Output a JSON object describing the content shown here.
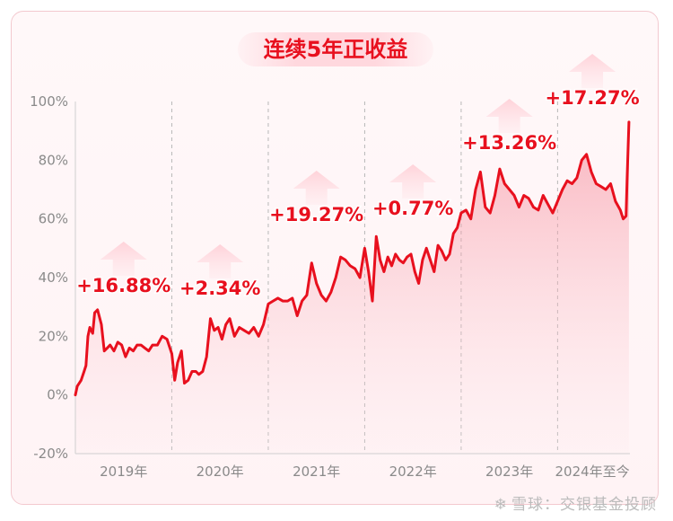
{
  "title": "连续5年正收益",
  "watermark": "雪球：交银基金投顾",
  "chart_data": {
    "type": "line",
    "title": "连续5年正收益",
    "ylim": [
      -20,
      100
    ],
    "y_ticks": [
      "100%",
      "80%",
      "60%",
      "40%",
      "20%",
      "0%",
      "-20%"
    ],
    "y_tick_values": [
      100,
      80,
      60,
      40,
      20,
      0,
      -20
    ],
    "x_categories": [
      "2019年",
      "2020年",
      "2021年",
      "2022年",
      "2023年",
      "2024年至今"
    ],
    "x_range": [
      2019,
      2024.75
    ],
    "grid": false,
    "line_color": "#e8101e",
    "fill_color": "#f6a5b1",
    "annotations": [
      {
        "text": "+16.88%",
        "year": 2019
      },
      {
        "text": "+2.34%",
        "year": 2020
      },
      {
        "text": "+19.27%",
        "year": 2021
      },
      {
        "text": "+0.77%",
        "year": 2022
      },
      {
        "text": "+13.26%",
        "year": 2023
      },
      {
        "text": "+17.27%",
        "year": 2024
      }
    ],
    "series": [
      {
        "x": [
          2019.0,
          2019.02,
          2019.04,
          2019.06,
          2019.09,
          2019.11,
          2019.13,
          2019.15,
          2019.18,
          2019.2,
          2019.23,
          2019.27,
          2019.3,
          2019.33,
          2019.36,
          2019.4,
          2019.44,
          2019.48,
          2019.52,
          2019.56,
          2019.6,
          2019.64,
          2019.68,
          2019.72,
          2019.76,
          2019.8,
          2019.85,
          2019.9,
          2019.95,
          2020.0,
          2020.03,
          2020.06,
          2020.1,
          2020.13,
          2020.17,
          2020.21,
          2020.25,
          2020.28,
          2020.32,
          2020.36,
          2020.4,
          2020.44,
          2020.48,
          2020.52,
          2020.56,
          2020.6,
          2020.65,
          2020.7,
          2020.75,
          2020.8,
          2020.85,
          2020.9,
          2020.95,
          2021.0,
          2021.05,
          2021.1,
          2021.15,
          2021.2,
          2021.25,
          2021.3,
          2021.35,
          2021.4,
          2021.45,
          2021.5,
          2021.55,
          2021.6,
          2021.65,
          2021.7,
          2021.75,
          2021.8,
          2021.85,
          2021.9,
          2021.95,
          2022.0,
          2022.04,
          2022.08,
          2022.12,
          2022.16,
          2022.2,
          2022.24,
          2022.28,
          2022.32,
          2022.36,
          2022.4,
          2022.44,
          2022.48,
          2022.52,
          2022.56,
          2022.6,
          2022.64,
          2022.68,
          2022.72,
          2022.76,
          2022.8,
          2022.84,
          2022.88,
          2022.92,
          2022.96,
          2023.0,
          2023.05,
          2023.1,
          2023.15,
          2023.2,
          2023.25,
          2023.3,
          2023.35,
          2023.4,
          2023.45,
          2023.5,
          2023.55,
          2023.6,
          2023.65,
          2023.7,
          2023.75,
          2023.8,
          2023.85,
          2023.9,
          2023.95,
          2024.0,
          2024.05,
          2024.1,
          2024.15,
          2024.2,
          2024.25,
          2024.3,
          2024.35,
          2024.4,
          2024.45,
          2024.5,
          2024.55,
          2024.6,
          2024.65,
          2024.68,
          2024.71,
          2024.72,
          2024.74
        ],
        "y": [
          0,
          3,
          4,
          5,
          8,
          10,
          20,
          23,
          21,
          28,
          29,
          24,
          15,
          16,
          17,
          15,
          18,
          17,
          13,
          16,
          15,
          17,
          17,
          16,
          15,
          17,
          17,
          20,
          19,
          14,
          5,
          11,
          15,
          4,
          5,
          8,
          8,
          7,
          8,
          13,
          26,
          22,
          23,
          19,
          24,
          26,
          20,
          23,
          22,
          21,
          23,
          20,
          24,
          31,
          32,
          33,
          32,
          32,
          33,
          27,
          32,
          34,
          45,
          38,
          34,
          32,
          35,
          40,
          47,
          46,
          44,
          43,
          40,
          50,
          42,
          32,
          54,
          46,
          42,
          47,
          44,
          48,
          46,
          45,
          47,
          48,
          42,
          38,
          46,
          50,
          46,
          42,
          51,
          49,
          46,
          48,
          55,
          57,
          62,
          63,
          60,
          70,
          76,
          64,
          62,
          68,
          77,
          72,
          70,
          68,
          64,
          68,
          67,
          64,
          63,
          68,
          65,
          62,
          66,
          70,
          73,
          72,
          74,
          80,
          82,
          76,
          72,
          71,
          70,
          72,
          66,
          63,
          60,
          61,
          73,
          93
        ]
      }
    ]
  }
}
